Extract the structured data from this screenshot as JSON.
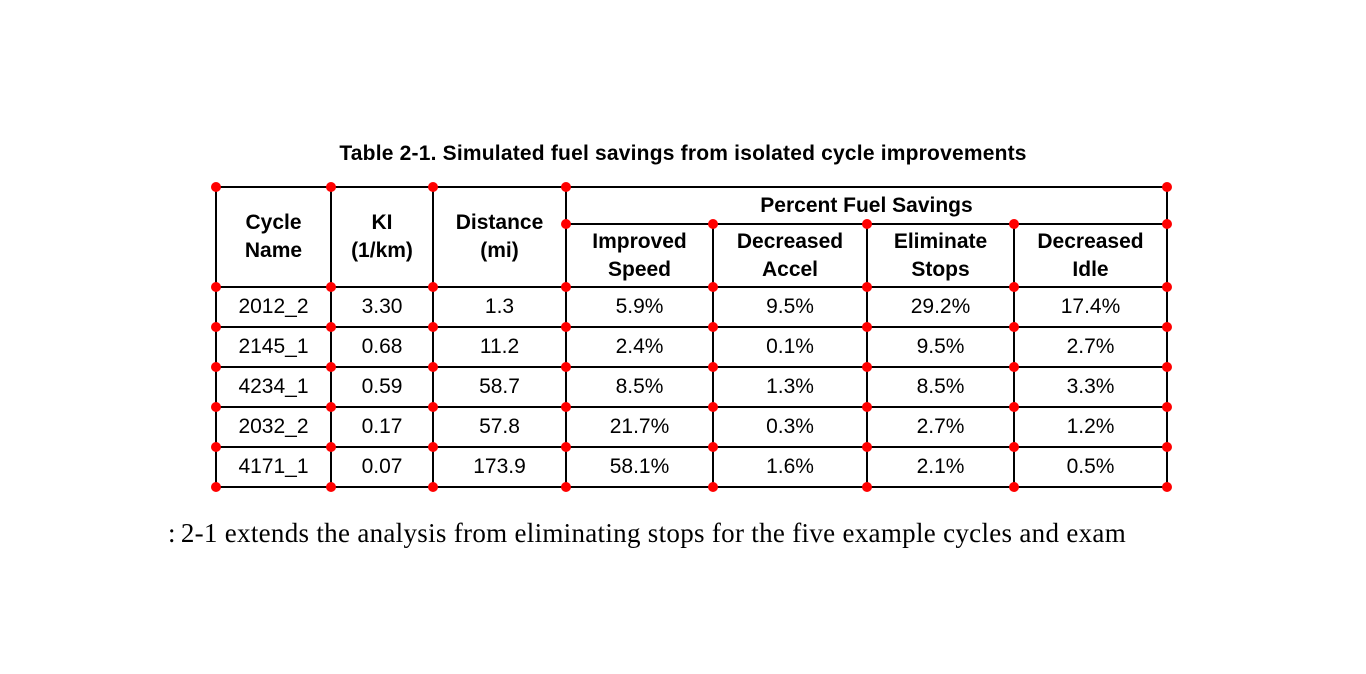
{
  "caption": "Table 2-1. Simulated fuel savings from isolated cycle improvements",
  "table": {
    "col_headers": [
      "Cycle\nName",
      "KI\n(1/km)",
      "Distance\n(mi)"
    ],
    "group_header": "Percent Fuel Savings",
    "sub_headers": [
      "Improved\nSpeed",
      "Decreased\nAccel",
      "Eliminate\nStops",
      "Decreased\nIdle"
    ],
    "rows": [
      [
        "2012_2",
        "3.30",
        "1.3",
        "5.9%",
        "9.5%",
        "29.2%",
        "17.4%"
      ],
      [
        "2145_1",
        "0.68",
        "11.2",
        "2.4%",
        "0.1%",
        "9.5%",
        "2.7%"
      ],
      [
        "4234_1",
        "0.59",
        "58.7",
        "8.5%",
        "1.3%",
        "8.5%",
        "3.3%"
      ],
      [
        "2032_2",
        "0.17",
        "57.8",
        "21.7%",
        "0.3%",
        "2.7%",
        "1.2%"
      ],
      [
        "4171_1",
        "0.07",
        "173.9",
        "58.1%",
        "1.6%",
        "2.1%",
        "0.5%"
      ]
    ]
  },
  "body_text": {
    "fragment": ":",
    "text": "2-1 extends the analysis from eliminating stops for the five example cycles and exam"
  },
  "annotation": {
    "color": "#ff0000"
  }
}
